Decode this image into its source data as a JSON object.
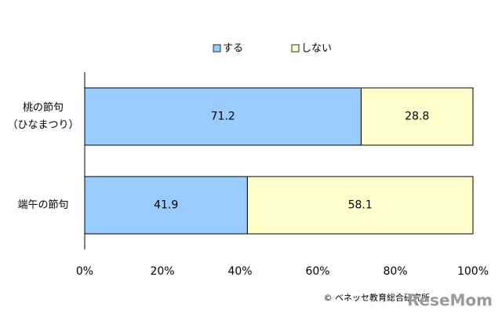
{
  "chart_data": {
    "type": "stacked-bar-horizontal",
    "categories": [
      "桃の節句\n（ひなまつり）",
      "端午の節句"
    ],
    "series": [
      {
        "name": "する",
        "color": "#99ccff",
        "values": [
          71.2,
          41.9
        ]
      },
      {
        "name": "しない",
        "color": "#ffffcc",
        "values": [
          28.8,
          58.1
        ]
      }
    ],
    "xlim": [
      0,
      100
    ],
    "xticks": [
      {
        "value": 0,
        "label": "0%"
      },
      {
        "value": 20,
        "label": "20%"
      },
      {
        "value": 40,
        "label": "40%"
      },
      {
        "value": 60,
        "label": "60%"
      },
      {
        "value": 80,
        "label": "80%"
      },
      {
        "value": 100,
        "label": "100%"
      }
    ],
    "legend": "top",
    "source": "© ベネッセ教育総合研究所",
    "watermark": "ReseMom"
  }
}
